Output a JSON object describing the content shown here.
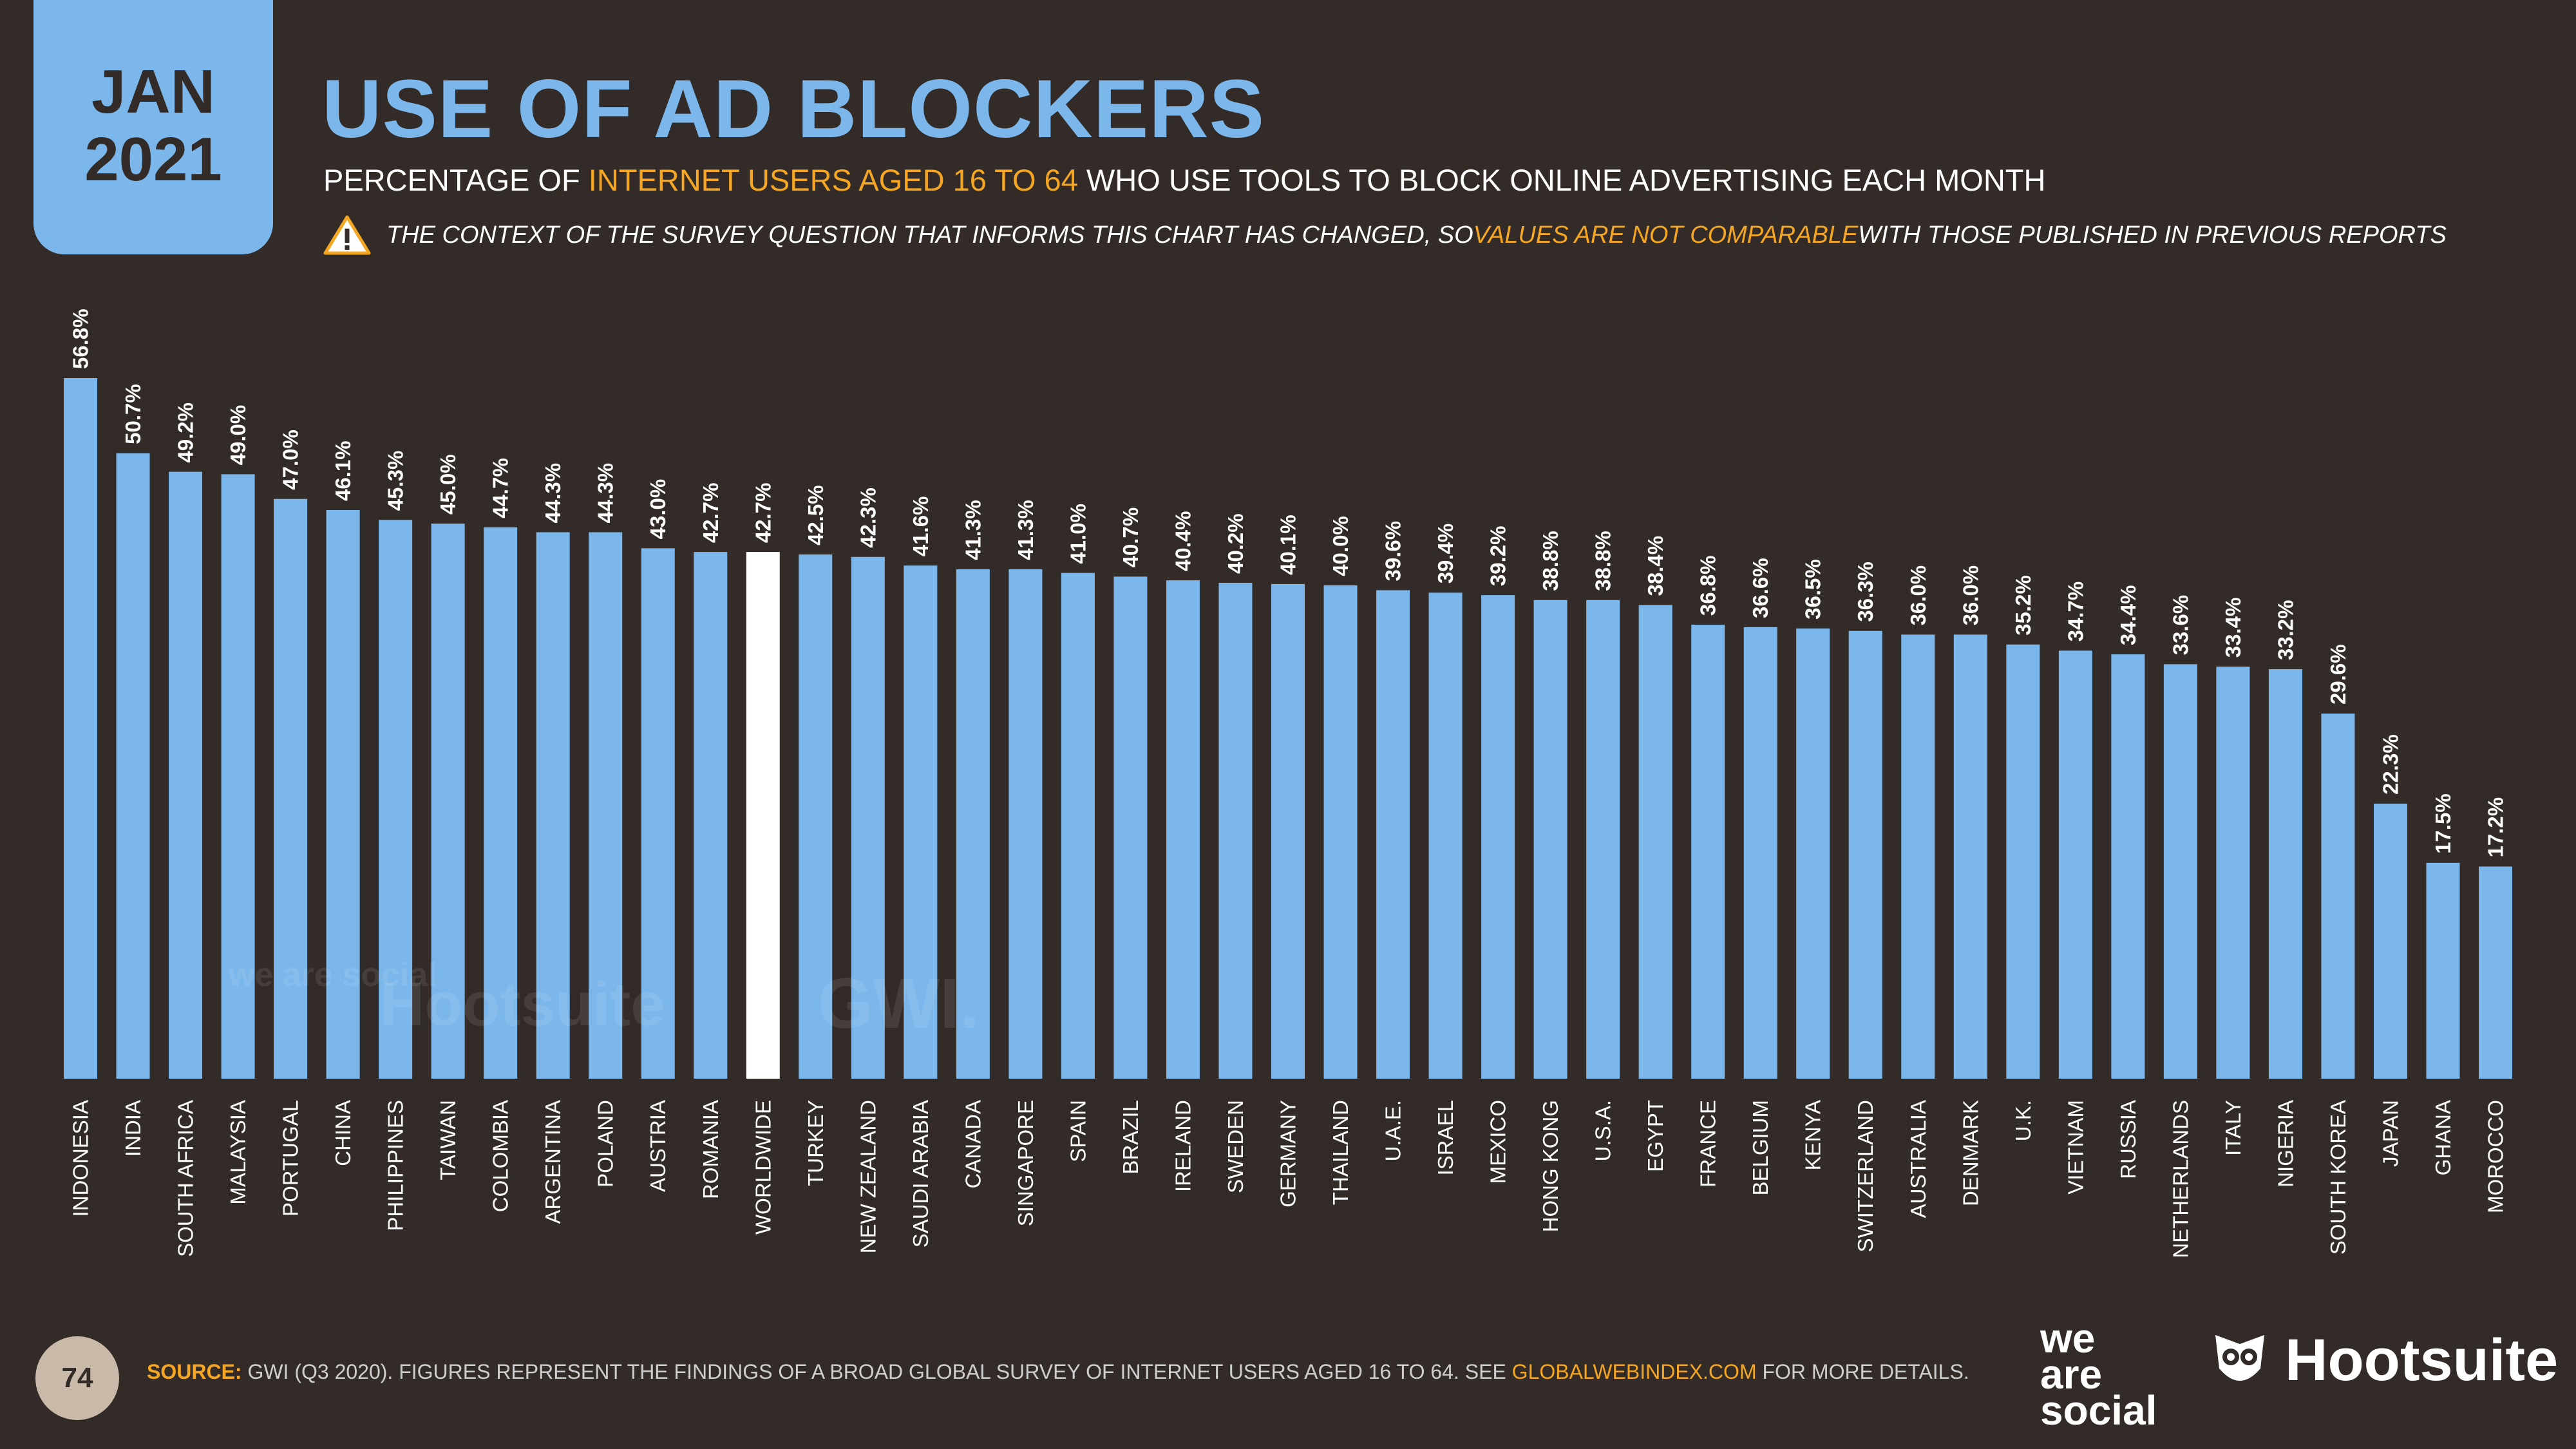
{
  "badge": {
    "month": "JAN",
    "year": "2021"
  },
  "title": "USE OF AD BLOCKERS",
  "subtitle": {
    "pre": "PERCENTAGE OF ",
    "highlight": "INTERNET USERS AGED 16 TO 64",
    "post": " WHO USE TOOLS TO BLOCK ONLINE ADVERTISING EACH MONTH"
  },
  "warning": {
    "pre": "THE CONTEXT OF THE SURVEY QUESTION THAT INFORMS THIS CHART HAS CHANGED, SO ",
    "highlight": "VALUES ARE NOT COMPARABLE",
    "post": " WITH THOSE PUBLISHED IN PREVIOUS REPORTS"
  },
  "watermarks": {
    "we_are_social": "we are social",
    "hootsuite": "Hootsuite",
    "gwi": "GWI."
  },
  "colors": {
    "bar": "#7cb7ec",
    "highlight_bar": "#ffffff",
    "background": "#332b27",
    "accent": "#f5a623"
  },
  "chart_data": {
    "type": "bar",
    "highlight_category": "WORLDWIDE",
    "categories": [
      "INDONESIA",
      "INDIA",
      "SOUTH AFRICA",
      "MALAYSIA",
      "PORTUGAL",
      "CHINA",
      "PHILIPPINES",
      "TAIWAN",
      "COLOMBIA",
      "ARGENTINA",
      "POLAND",
      "AUSTRIA",
      "ROMANIA",
      "WORLDWIDE",
      "TURKEY",
      "NEW ZEALAND",
      "SAUDI ARABIA",
      "CANADA",
      "SINGAPORE",
      "SPAIN",
      "BRAZIL",
      "IRELAND",
      "SWEDEN",
      "GERMANY",
      "THAILAND",
      "U.A.E.",
      "ISRAEL",
      "MEXICO",
      "HONG KONG",
      "U.S.A.",
      "EGYPT",
      "FRANCE",
      "BELGIUM",
      "KENYA",
      "SWITZERLAND",
      "AUSTRALIA",
      "DENMARK",
      "U.K.",
      "VIETNAM",
      "RUSSIA",
      "NETHERLANDS",
      "ITALY",
      "NIGERIA",
      "SOUTH KOREA",
      "JAPAN",
      "GHANA",
      "MOROCCO"
    ],
    "values": [
      56.8,
      50.7,
      49.2,
      49.0,
      47.0,
      46.1,
      45.3,
      45.0,
      44.7,
      44.3,
      44.3,
      43.0,
      42.7,
      42.7,
      42.5,
      42.3,
      41.6,
      41.3,
      41.3,
      41.0,
      40.7,
      40.4,
      40.2,
      40.1,
      40.0,
      39.6,
      39.4,
      39.2,
      38.8,
      38.8,
      38.4,
      36.8,
      36.6,
      36.5,
      36.3,
      36.0,
      36.0,
      35.2,
      34.7,
      34.4,
      33.6,
      33.4,
      33.2,
      29.6,
      22.3,
      17.5,
      17.2
    ],
    "value_labels": [
      "56.8%",
      "50.7%",
      "49.2%",
      "49.0%",
      "47.0%",
      "46.1%",
      "45.3%",
      "45.0%",
      "44.7%",
      "44.3%",
      "44.3%",
      "43.0%",
      "42.7%",
      "42.7%",
      "42.5%",
      "42.3%",
      "41.6%",
      "41.3%",
      "41.3%",
      "41.0%",
      "40.7%",
      "40.4%",
      "40.2%",
      "40.1%",
      "40.0%",
      "39.6%",
      "39.4%",
      "39.2%",
      "38.8%",
      "38.8%",
      "38.4%",
      "36.8%",
      "36.6%",
      "36.5%",
      "36.3%",
      "36.0%",
      "36.0%",
      "35.2%",
      "34.7%",
      "34.4%",
      "33.6%",
      "33.4%",
      "33.2%",
      "29.6%",
      "22.3%",
      "17.5%",
      "17.2%"
    ],
    "ylim": [
      0,
      56.8
    ]
  },
  "footer": {
    "page_number": "74",
    "source_label": "SOURCE:",
    "source_text": " GWI (Q3 2020). FIGURES REPRESENT THE FINDINGS OF A BROAD GLOBAL SURVEY OF INTERNET USERS AGED 16 TO 64. SEE ",
    "source_url": "GLOBALWEBINDEX.COM",
    "source_tail": " FOR MORE DETAILS."
  },
  "logos": {
    "we_are_social_line1": "we",
    "we_are_social_line2": "are",
    "we_are_social_line3": "social",
    "hootsuite": "Hootsuite"
  }
}
